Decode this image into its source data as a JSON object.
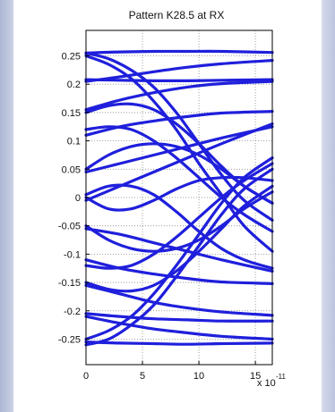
{
  "chart_data": {
    "type": "line",
    "title": "Pattern K28.5 at RX",
    "xlabel": "",
    "ylabel": "",
    "x_multiplier": "x 10",
    "x_multiplier_exp": "-11",
    "xlim": [
      0,
      16.5
    ],
    "ylim": [
      -0.295,
      0.295
    ],
    "grid": true,
    "x_ticks": [
      0,
      5,
      10,
      15
    ],
    "x_tick_labels": [
      "0",
      "5",
      "10",
      "15"
    ],
    "y_ticks": [
      0.25,
      0.2,
      0.15,
      0.1,
      0.05,
      0,
      -0.05,
      -0.1,
      -0.15,
      -0.2,
      -0.25
    ],
    "y_tick_labels": [
      "0.25",
      "0.2",
      "0.15",
      "0.1",
      "0.05",
      "0",
      "-0.05",
      "-0.1",
      "-0.15",
      "-0.2",
      "-0.25"
    ],
    "series_color": "#1f1fdc",
    "series": [
      {
        "x": [
          0,
          3,
          6,
          9,
          12,
          16.5
        ],
        "y": [
          0.255,
          0.257,
          0.258,
          0.258,
          0.258,
          0.256
        ]
      },
      {
        "x": [
          0,
          3,
          6,
          9,
          12,
          16.5
        ],
        "y": [
          0.205,
          0.213,
          0.222,
          0.23,
          0.236,
          0.242
        ]
      },
      {
        "x": [
          0,
          3,
          6,
          9,
          12,
          16.5
        ],
        "y": [
          0.208,
          0.207,
          0.206,
          0.206,
          0.207,
          0.208
        ]
      },
      {
        "x": [
          0,
          2,
          4,
          6,
          8,
          10,
          12,
          14,
          16.5
        ],
        "y": [
          0.255,
          0.245,
          0.225,
          0.195,
          0.15,
          0.095,
          0.04,
          -0.005,
          -0.04
        ]
      },
      {
        "x": [
          0,
          2,
          4,
          6,
          8,
          10,
          12,
          14,
          16.5
        ],
        "y": [
          0.25,
          0.235,
          0.21,
          0.17,
          0.12,
          0.06,
          0.005,
          -0.05,
          -0.095
        ]
      },
      {
        "x": [
          0,
          3,
          6,
          9,
          12,
          16.5
        ],
        "y": [
          0.155,
          0.172,
          0.185,
          0.195,
          0.201,
          0.205
        ]
      },
      {
        "x": [
          0,
          3,
          6,
          9,
          12,
          16.5
        ],
        "y": [
          0.11,
          0.125,
          0.135,
          0.143,
          0.149,
          0.152
        ]
      },
      {
        "x": [
          0,
          2,
          4,
          6,
          8,
          10,
          12,
          14,
          16.5
        ],
        "y": [
          0.15,
          0.162,
          0.165,
          0.155,
          0.13,
          0.095,
          0.055,
          0.02,
          -0.01
        ]
      },
      {
        "x": [
          0,
          2,
          4,
          6,
          8,
          10,
          12,
          14,
          16.5
        ],
        "y": [
          0.12,
          0.125,
          0.12,
          0.1,
          0.07,
          0.035,
          0.0,
          -0.03,
          -0.06
        ]
      },
      {
        "x": [
          0,
          2,
          4,
          6,
          8,
          10,
          12,
          14,
          16.5
        ],
        "y": [
          0.05,
          0.075,
          0.09,
          0.095,
          0.09,
          0.075,
          0.05,
          0.02,
          -0.01
        ]
      },
      {
        "x": [
          0,
          3,
          6,
          9,
          12,
          16.5
        ],
        "y": [
          0.045,
          0.06,
          0.075,
          0.09,
          0.105,
          0.125
        ]
      },
      {
        "x": [
          0,
          3,
          6,
          9,
          12,
          16.5
        ],
        "y": [
          -0.005,
          0.02,
          0.045,
          0.07,
          0.095,
          0.13
        ]
      },
      {
        "x": [
          0,
          2,
          4,
          6,
          8,
          10,
          12,
          14,
          16.5
        ],
        "y": [
          0.005,
          0.02,
          0.02,
          0.005,
          -0.025,
          -0.06,
          -0.09,
          -0.11,
          -0.125
        ]
      },
      {
        "x": [
          0,
          2,
          4,
          6,
          8,
          10,
          12,
          14,
          16.5
        ],
        "y": [
          0.0,
          -0.02,
          -0.02,
          -0.005,
          0.015,
          0.03,
          0.035,
          0.035,
          0.03
        ]
      },
      {
        "x": [
          0,
          2,
          4,
          6,
          8,
          10,
          12,
          14,
          16.5
        ],
        "y": [
          -0.05,
          -0.075,
          -0.09,
          -0.095,
          -0.09,
          -0.075,
          -0.05,
          -0.02,
          0.01
        ]
      },
      {
        "x": [
          0,
          3,
          6,
          9,
          12,
          16.5
        ],
        "y": [
          -0.055,
          -0.065,
          -0.08,
          -0.095,
          -0.11,
          -0.13
        ]
      },
      {
        "x": [
          0,
          2,
          4,
          6,
          8,
          10,
          12,
          14,
          16.5
        ],
        "y": [
          -0.12,
          -0.125,
          -0.12,
          -0.1,
          -0.07,
          -0.035,
          0.0,
          0.03,
          0.06
        ]
      },
      {
        "x": [
          0,
          2,
          4,
          6,
          8,
          10,
          12,
          14,
          16.5
        ],
        "y": [
          -0.15,
          -0.162,
          -0.165,
          -0.155,
          -0.13,
          -0.095,
          -0.055,
          -0.015,
          0.02
        ]
      },
      {
        "x": [
          0,
          3,
          6,
          9,
          12,
          16.5
        ],
        "y": [
          -0.11,
          -0.125,
          -0.135,
          -0.143,
          -0.149,
          -0.152
        ]
      },
      {
        "x": [
          0,
          2,
          4,
          6,
          8,
          10,
          12,
          14,
          16.5
        ],
        "y": [
          -0.25,
          -0.235,
          -0.21,
          -0.17,
          -0.12,
          -0.065,
          -0.01,
          0.035,
          0.07
        ]
      },
      {
        "x": [
          0,
          2,
          4,
          6,
          8,
          10,
          12,
          14,
          16.5
        ],
        "y": [
          -0.26,
          -0.25,
          -0.225,
          -0.19,
          -0.14,
          -0.085,
          -0.03,
          0.015,
          0.05
        ]
      },
      {
        "x": [
          0,
          3,
          6,
          9,
          12,
          16.5
        ],
        "y": [
          -0.155,
          -0.17,
          -0.185,
          -0.195,
          -0.202,
          -0.208
        ]
      },
      {
        "x": [
          0,
          3,
          6,
          9,
          12,
          16.5
        ],
        "y": [
          -0.205,
          -0.21,
          -0.214,
          -0.216,
          -0.218,
          -0.218
        ]
      },
      {
        "x": [
          0,
          3,
          6,
          9,
          12,
          16.5
        ],
        "y": [
          -0.21,
          -0.222,
          -0.232,
          -0.239,
          -0.245,
          -0.25
        ]
      },
      {
        "x": [
          0,
          3,
          6,
          9,
          12,
          16.5
        ],
        "y": [
          -0.255,
          -0.257,
          -0.258,
          -0.259,
          -0.258,
          -0.257
        ]
      }
    ]
  }
}
